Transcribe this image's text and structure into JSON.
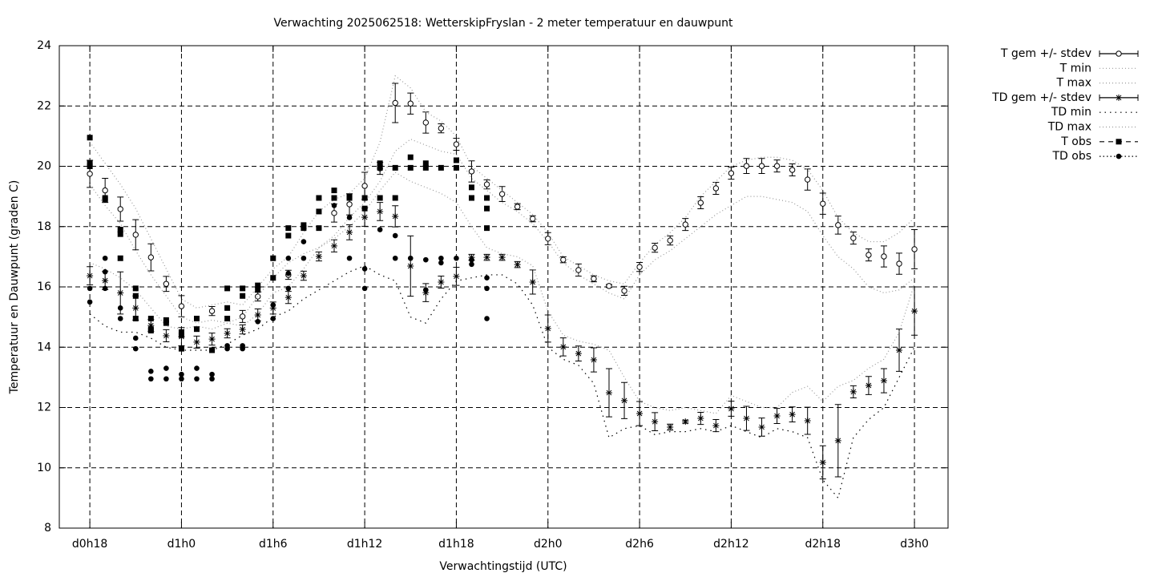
{
  "chart_data": {
    "type": "line",
    "title": "Verwachting 2025062518: WetterskipFryslan - 2 meter temperatuur en dauwpunt",
    "xlabel": "Verwachtingstijd (UTC)",
    "ylabel": "Temperatuur en Dauwpunt (graden C)",
    "xlim": [
      -2,
      56.2
    ],
    "xticks": [
      {
        "value": 0,
        "label": "d0h18"
      },
      {
        "value": 6,
        "label": "d1h0"
      },
      {
        "value": 12,
        "label": "d1h6"
      },
      {
        "value": 18,
        "label": "d1h12"
      },
      {
        "value": 24,
        "label": "d1h18"
      },
      {
        "value": 30,
        "label": "d2h0"
      },
      {
        "value": 36,
        "label": "d2h6"
      },
      {
        "value": 42,
        "label": "d2h12"
      },
      {
        "value": 48,
        "label": "d2h18"
      },
      {
        "value": 54,
        "label": "d3h0"
      }
    ],
    "ylim": [
      8,
      24
    ],
    "yticks": [
      8,
      10,
      12,
      14,
      16,
      18,
      20,
      22,
      24
    ],
    "grid": true,
    "legend": "outside-right",
    "x": [
      0,
      1,
      2,
      3,
      4,
      5,
      6,
      7,
      8,
      9,
      10,
      11,
      12,
      13,
      14,
      15,
      16,
      17,
      18,
      19,
      20,
      21,
      22,
      23,
      24,
      25,
      26,
      27,
      28,
      29,
      30,
      31,
      32,
      33,
      34,
      35,
      36,
      37,
      38,
      39,
      40,
      41,
      42,
      43,
      44,
      45,
      46,
      47,
      48,
      49,
      50,
      51,
      52,
      53,
      54
    ],
    "series": [
      {
        "name": "T gem +/- stdev",
        "color": "#000000",
        "marker": "circle",
        "line": "solid",
        "values": [
          19.75,
          19.2,
          18.58,
          17.73,
          16.98,
          16.1,
          15.36,
          null,
          15.2,
          null,
          15.02,
          15.68,
          null,
          16.4,
          null,
          null,
          18.45,
          18.74,
          19.35,
          19.93,
          22.1,
          22.08,
          21.45,
          21.26,
          20.73,
          19.83,
          19.4,
          19.08,
          18.66,
          18.26,
          17.6,
          16.9,
          16.56,
          16.27,
          16.03,
          15.87,
          16.66,
          17.3,
          17.54,
          18.07,
          18.79,
          19.27,
          19.77,
          20.01,
          20.01,
          20.01,
          19.88,
          19.56,
          18.76,
          18.05,
          17.62,
          17.06,
          17.01,
          16.77,
          17.25
        ],
        "errors": [
          0.45,
          0.4,
          0.4,
          0.5,
          0.45,
          0.25,
          0.35,
          null,
          0.15,
          null,
          0.2,
          0.15,
          null,
          0.15,
          null,
          null,
          0.3,
          0.35,
          0.45,
          0.2,
          0.65,
          0.35,
          0.35,
          0.15,
          0.2,
          0.35,
          0.15,
          0.25,
          0.1,
          0.1,
          0.2,
          0.1,
          0.2,
          0.1,
          0.05,
          0.15,
          0.15,
          0.15,
          0.15,
          0.2,
          0.2,
          0.2,
          0.2,
          0.25,
          0.25,
          0.2,
          0.2,
          0.35,
          0.35,
          0.3,
          0.2,
          0.2,
          0.35,
          0.35,
          0.65
        ]
      },
      {
        "name": "T min",
        "color": "#999999",
        "marker": "none",
        "line": "dotted",
        "values": [
          19.4,
          18.7,
          18.1,
          17.2,
          16.4,
          15.7,
          15.0,
          14.8,
          14.9,
          14.8,
          14.7,
          15.1,
          15.8,
          16.0,
          16.6,
          17.3,
          17.7,
          18.3,
          18.8,
          19.5,
          20.5,
          20.9,
          20.7,
          20.5,
          20.4,
          19.6,
          19.2,
          18.8,
          18.5,
          18.1,
          17.5,
          16.8,
          16.4,
          16.1,
          15.8,
          15.6,
          16.4,
          16.9,
          17.2,
          17.6,
          18.0,
          18.4,
          18.7,
          19.0,
          19.0,
          18.9,
          18.8,
          18.5,
          17.7,
          17.0,
          16.6,
          16.0,
          15.8,
          15.9,
          16.3
        ]
      },
      {
        "name": "T max",
        "color": "#999999",
        "marker": "none",
        "line": "dotted",
        "values": [
          20.8,
          20.1,
          19.4,
          18.6,
          17.6,
          16.6,
          15.6,
          15.3,
          15.4,
          15.5,
          15.4,
          16.0,
          16.6,
          17.0,
          17.8,
          18.5,
          18.9,
          19.1,
          19.6,
          20.8,
          23.0,
          22.6,
          21.8,
          21.5,
          21.0,
          20.0,
          19.6,
          19.2,
          18.8,
          18.4,
          17.8,
          17.0,
          16.7,
          16.4,
          16.2,
          16.1,
          16.8,
          17.4,
          17.8,
          18.3,
          19.0,
          19.5,
          20.0,
          20.2,
          20.3,
          20.3,
          20.2,
          19.9,
          19.2,
          18.3,
          17.8,
          17.5,
          17.5,
          17.8,
          18.3
        ]
      },
      {
        "name": "TD gem +/- stdev",
        "color": "#000000",
        "marker": "star",
        "line": "solid",
        "values": [
          16.37,
          16.21,
          15.8,
          15.3,
          14.72,
          14.38,
          14.35,
          14.17,
          14.27,
          14.46,
          14.59,
          15.07,
          15.3,
          15.65,
          16.37,
          17.01,
          17.36,
          17.81,
          18.31,
          18.5,
          18.34,
          16.69,
          15.81,
          16.16,
          16.35,
          16.98,
          16.98,
          16.98,
          16.74,
          16.16,
          14.62,
          14.01,
          13.79,
          13.58,
          12.49,
          12.23,
          11.8,
          11.53,
          11.35,
          11.53,
          11.64,
          11.4,
          11.96,
          11.64,
          11.35,
          11.72,
          11.77,
          11.56,
          10.18,
          10.9,
          12.52,
          12.73,
          12.89,
          13.9,
          15.2
        ],
        "errors": [
          0.3,
          0.3,
          0.7,
          0.4,
          0.2,
          0.2,
          0.3,
          0.2,
          0.2,
          0.15,
          0.15,
          0.2,
          0.2,
          0.2,
          0.15,
          0.15,
          0.2,
          0.25,
          0.3,
          0.3,
          0.35,
          1.0,
          0.3,
          0.2,
          0.3,
          0.1,
          0.1,
          0.1,
          0.1,
          0.4,
          0.45,
          0.3,
          0.25,
          0.4,
          0.8,
          0.6,
          0.4,
          0.3,
          0.1,
          0.05,
          0.2,
          0.2,
          0.25,
          0.4,
          0.3,
          0.25,
          0.25,
          0.45,
          0.55,
          1.2,
          0.2,
          0.3,
          0.4,
          0.7,
          0.8
        ]
      },
      {
        "name": "TD min",
        "color": "#000000",
        "marker": "none",
        "line": "sparse-dotted",
        "values": [
          15.1,
          14.7,
          14.5,
          14.5,
          14.3,
          14.0,
          13.9,
          13.9,
          13.9,
          14.1,
          14.4,
          14.6,
          15.0,
          15.2,
          15.6,
          15.9,
          16.2,
          16.5,
          16.7,
          16.4,
          16.2,
          15.0,
          14.8,
          15.6,
          16.2,
          16.3,
          16.4,
          16.4,
          16.1,
          15.4,
          14.0,
          13.6,
          13.4,
          12.8,
          11.0,
          11.3,
          11.4,
          11.1,
          11.2,
          11.2,
          11.3,
          11.2,
          11.4,
          11.2,
          11.0,
          11.3,
          11.2,
          11.0,
          9.6,
          9.0,
          11.0,
          11.6,
          12.0,
          13.0,
          14.0
        ]
      },
      {
        "name": "TD max",
        "color": "#999999",
        "marker": "none",
        "line": "dotted",
        "values": [
          16.8,
          16.6,
          16.3,
          15.9,
          15.3,
          14.7,
          14.6,
          14.7,
          14.6,
          14.8,
          15.0,
          15.7,
          16.3,
          16.8,
          17.1,
          17.3,
          17.6,
          18.0,
          18.5,
          19.2,
          19.8,
          19.5,
          19.3,
          19.1,
          18.8,
          18.0,
          17.3,
          17.1,
          17.0,
          16.7,
          15.2,
          14.4,
          14.2,
          14.1,
          13.9,
          13.0,
          12.2,
          12.0,
          11.9,
          12.0,
          11.9,
          11.8,
          12.4,
          12.2,
          12.0,
          12.0,
          12.5,
          12.7,
          12.2,
          12.7,
          12.9,
          13.3,
          13.6,
          14.5,
          16.1
        ]
      },
      {
        "name": "T obs",
        "color": "#000000",
        "marker": "square",
        "line": "dashed",
        "x": [
          0,
          0,
          0,
          1,
          1,
          2,
          2,
          2,
          3,
          3,
          3,
          4,
          4,
          4,
          5,
          5,
          6,
          6,
          6,
          7,
          7,
          8,
          9,
          9,
          9,
          10,
          10,
          11,
          11,
          12,
          12,
          13,
          13,
          14,
          14,
          15,
          15,
          15,
          16,
          16,
          17,
          17,
          18,
          18,
          19,
          19,
          19,
          20,
          20,
          21,
          21,
          22,
          22,
          23,
          24,
          24,
          25,
          25,
          26,
          26,
          26
        ],
        "values": [
          20.95,
          20.1,
          20.0,
          18.95,
          18.9,
          17.9,
          17.75,
          16.95,
          15.95,
          15.7,
          14.95,
          14.95,
          14.6,
          14.55,
          14.9,
          14.8,
          14.5,
          14.4,
          13.95,
          14.95,
          14.6,
          13.9,
          15.95,
          15.3,
          14.95,
          15.95,
          15.7,
          16.05,
          15.9,
          16.95,
          16.3,
          17.95,
          17.7,
          18.05,
          17.95,
          18.95,
          18.5,
          17.95,
          19.2,
          18.95,
          19.0,
          18.95,
          18.95,
          18.6,
          20.1,
          19.95,
          18.95,
          19.95,
          18.95,
          20.3,
          19.95,
          20.1,
          19.95,
          19.95,
          20.2,
          19.95,
          19.3,
          18.95,
          18.95,
          18.6,
          17.95
        ]
      },
      {
        "name": "TD obs",
        "color": "#000000",
        "marker": "dot",
        "line": "dotted-dense",
        "x": [
          0,
          0,
          1,
          1,
          1,
          2,
          2,
          3,
          3,
          4,
          4,
          5,
          5,
          6,
          6,
          7,
          7,
          8,
          8,
          9,
          9,
          10,
          10,
          11,
          12,
          12,
          13,
          13,
          13,
          14,
          14,
          15,
          16,
          17,
          17,
          18,
          18,
          19,
          20,
          20,
          21,
          22,
          22,
          23,
          23,
          24,
          25,
          25,
          26,
          26,
          26
        ],
        "values": [
          15.95,
          15.5,
          16.95,
          16.5,
          15.95,
          15.3,
          14.95,
          14.3,
          13.95,
          13.2,
          12.95,
          13.3,
          12.95,
          13.1,
          12.95,
          13.3,
          12.95,
          13.1,
          12.95,
          14.05,
          13.95,
          14.05,
          13.95,
          14.85,
          15.4,
          14.95,
          16.95,
          16.45,
          15.95,
          17.5,
          16.95,
          17.95,
          18.7,
          18.3,
          16.95,
          16.6,
          15.95,
          17.9,
          17.7,
          16.95,
          16.95,
          16.9,
          15.9,
          16.95,
          16.8,
          16.95,
          16.9,
          16.75,
          16.3,
          15.95,
          14.95
        ]
      }
    ]
  }
}
